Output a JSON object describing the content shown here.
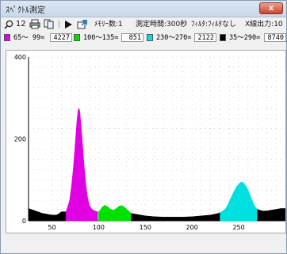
{
  "window": {
    "title": "ｽﾍﾟｸﾄﾙ測定",
    "close_label": "x"
  },
  "toolbar": {
    "zoom_value": "12",
    "memory_label": "ﾒﾓﾘｰ数:1",
    "time_label": "測定時間:300秒",
    "filter_label": "ﾌｨﾙﾀ:ﾌｨﾙﾀなし",
    "xray_label": "X線出力:10"
  },
  "ranges": [
    {
      "label": "65～ 99=",
      "value": "4227",
      "color": "#e100e1"
    },
    {
      "label": "100～135=",
      "value": "851",
      "color": "#00e000"
    },
    {
      "label": "230～270=",
      "value": "2122",
      "color": "#00e0e0"
    },
    {
      "label": "35～290=",
      "value": "8740",
      "color": "#000000"
    }
  ],
  "chart_data": {
    "type": "area",
    "xlim": [
      25,
      300
    ],
    "ylim": [
      0,
      400
    ],
    "x_ticks": [
      "50",
      "100",
      "150",
      "200",
      "250"
    ],
    "y_ticks": [
      "0",
      "200",
      "400"
    ],
    "grid": true,
    "series": [
      {
        "color": "#000000",
        "x_range": [
          25,
          65
        ]
      },
      {
        "color": "#e100e1",
        "x_range": [
          65,
          99
        ]
      },
      {
        "color": "#00e000",
        "x_range": [
          100,
          135
        ]
      },
      {
        "color": "#000000",
        "x_range": [
          135,
          230
        ]
      },
      {
        "color": "#00e0e0",
        "x_range": [
          230,
          270
        ]
      },
      {
        "color": "#000000",
        "x_range": [
          270,
          300
        ]
      }
    ],
    "points": [
      [
        25,
        30
      ],
      [
        30,
        26
      ],
      [
        35,
        22
      ],
      [
        40,
        18
      ],
      [
        45,
        16
      ],
      [
        50,
        14
      ],
      [
        55,
        14
      ],
      [
        58,
        18
      ],
      [
        60,
        22
      ],
      [
        63,
        22
      ],
      [
        65,
        22
      ],
      [
        67,
        35
      ],
      [
        69,
        50
      ],
      [
        71,
        85
      ],
      [
        73,
        130
      ],
      [
        75,
        190
      ],
      [
        77,
        250
      ],
      [
        78,
        270
      ],
      [
        79,
        275
      ],
      [
        80,
        265
      ],
      [
        82,
        210
      ],
      [
        84,
        150
      ],
      [
        86,
        95
      ],
      [
        88,
        60
      ],
      [
        90,
        38
      ],
      [
        93,
        28
      ],
      [
        96,
        24
      ],
      [
        99,
        22
      ],
      [
        101,
        24
      ],
      [
        104,
        34
      ],
      [
        107,
        38
      ],
      [
        110,
        34
      ],
      [
        113,
        28
      ],
      [
        116,
        26
      ],
      [
        119,
        30
      ],
      [
        122,
        36
      ],
      [
        125,
        37
      ],
      [
        128,
        33
      ],
      [
        131,
        26
      ],
      [
        134,
        20
      ],
      [
        135,
        18
      ],
      [
        140,
        16
      ],
      [
        145,
        14
      ],
      [
        150,
        12
      ],
      [
        160,
        10
      ],
      [
        170,
        9
      ],
      [
        180,
        9
      ],
      [
        190,
        9
      ],
      [
        200,
        10
      ],
      [
        210,
        12
      ],
      [
        220,
        14
      ],
      [
        228,
        18
      ],
      [
        230,
        20
      ],
      [
        233,
        24
      ],
      [
        236,
        30
      ],
      [
        239,
        42
      ],
      [
        242,
        58
      ],
      [
        245,
        72
      ],
      [
        248,
        84
      ],
      [
        251,
        92
      ],
      [
        253,
        95
      ],
      [
        255,
        93
      ],
      [
        258,
        84
      ],
      [
        261,
        70
      ],
      [
        264,
        52
      ],
      [
        267,
        36
      ],
      [
        270,
        28
      ],
      [
        275,
        24
      ],
      [
        280,
        24
      ],
      [
        285,
        26
      ],
      [
        290,
        28
      ],
      [
        295,
        30
      ],
      [
        300,
        30
      ]
    ]
  }
}
